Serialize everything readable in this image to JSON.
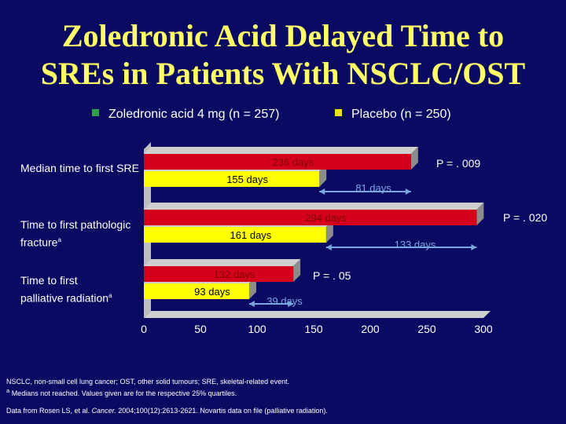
{
  "title_line1": "Zoledronic Acid Delayed Time to",
  "title_line2": "SREs in Patients With NSCLC/OST",
  "colors": {
    "background": "#0b0a63",
    "title": "#ffff66",
    "zoledronic": "#d4001c",
    "placebo": "#ffff00",
    "difference_arrow": "#7aa7e0",
    "bar_depth": "#8c8c8c"
  },
  "legend": {
    "zoledronic_label": "Zoledronic acid 4 mg (n = 257)",
    "placebo_label": "Placebo (n = 250)"
  },
  "category_labels": {
    "sre": "Median time to first SRE",
    "fracture": "Time to first pathologic fracture",
    "fracture_sup": "a",
    "radiation_line1": "Time to first",
    "radiation_line2": "palliative radiation",
    "radiation_sup": "a"
  },
  "chart_data": {
    "type": "bar",
    "orientation": "horizontal",
    "categories": [
      "Median time to first SRE",
      "Time to first pathologic fracture",
      "Time to first palliative radiation"
    ],
    "series": [
      {
        "name": "Zoledronic acid 4 mg (n = 257)",
        "values": [
          236,
          294,
          132
        ],
        "labels": [
          "236 days",
          "294 days",
          "132 days"
        ]
      },
      {
        "name": "Placebo (n = 250)",
        "values": [
          155,
          161,
          93
        ],
        "labels": [
          "155 days",
          "161 days",
          "93 days"
        ]
      }
    ],
    "differences": [
      "81 days",
      "133 days",
      "39 days"
    ],
    "p_values": [
      "P = . 009",
      "P = . 020",
      "P = . 05"
    ],
    "xlim": [
      0,
      300
    ],
    "xticks": [
      0,
      50,
      100,
      150,
      200,
      250,
      300
    ],
    "grid": false
  },
  "footnotes": {
    "line1": "NSCLC, non-small cell lung cancer; OST, other solid tumours; SRE, skeletal-related event.",
    "line2_sup": "a",
    "line2": "Medians not reached. Values given are for the respective 25% quartiles.",
    "source_pre": "Data from Rosen LS, et al. ",
    "source_journal": "Cancer.",
    "source_post": " 2004;100(12):2613-2621. Novartis data on file (palliative radiation)."
  }
}
